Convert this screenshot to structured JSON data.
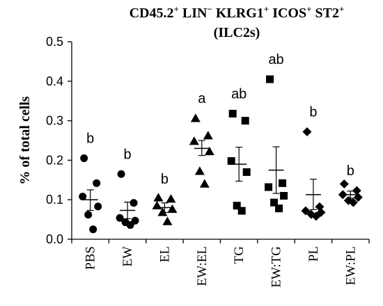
{
  "chart_data": {
    "type": "scatter",
    "title": {
      "line1_parts": [
        {
          "text": "CD45.2",
          "sup": "+"
        },
        {
          "text": " LIN",
          "sup": "−"
        },
        {
          "text": " KLRG1",
          "sup": "+"
        },
        {
          "text": " ICOS",
          "sup": "+"
        },
        {
          "text": " ST2",
          "sup": "+"
        }
      ],
      "line2": "(ILC2s)"
    },
    "ylabel": "% of total cells",
    "xlabel": "",
    "ylim": [
      0,
      0.5
    ],
    "yticks": [
      "0.0",
      "0.1",
      "0.2",
      "0.3",
      "0.4",
      "0.5"
    ],
    "categories": [
      "PBS",
      "EW",
      "EL",
      "EW:EL",
      "TG",
      "EW:TG",
      "PL",
      "EW:PL"
    ],
    "groups": [
      {
        "category": "PBS",
        "marker": "circle",
        "points": [
          0.205,
          0.142,
          0.108,
          0.083,
          0.062,
          0.025
        ],
        "mean": 0.1,
        "sem_low": 0.073,
        "sem_high": 0.125,
        "sig": "b"
      },
      {
        "category": "EW",
        "marker": "circle",
        "points": [
          0.165,
          0.092,
          0.054,
          0.047,
          0.043,
          0.036
        ],
        "mean": 0.073,
        "sem_low": 0.052,
        "sem_high": 0.094,
        "sig": "b"
      },
      {
        "category": "EL",
        "marker": "triangle",
        "points": [
          0.105,
          0.102,
          0.085,
          0.076,
          0.068,
          0.045
        ],
        "mean": 0.08,
        "sem_low": 0.068,
        "sem_high": 0.092,
        "sig": "b"
      },
      {
        "category": "EW:EL",
        "marker": "triangle",
        "points": [
          0.306,
          0.262,
          0.248,
          0.222,
          0.172,
          0.14
        ],
        "mean": 0.23,
        "sem_low": 0.212,
        "sem_high": 0.25,
        "sig": "a"
      },
      {
        "category": "TG",
        "marker": "square",
        "points": [
          0.318,
          0.3,
          0.198,
          0.17,
          0.085,
          0.072
        ],
        "mean": 0.19,
        "sem_low": 0.147,
        "sem_high": 0.233,
        "sig": "ab"
      },
      {
        "category": "EW:TG",
        "marker": "square",
        "points": [
          0.405,
          0.142,
          0.132,
          0.11,
          0.093,
          0.078
        ],
        "mean": 0.175,
        "sem_low": 0.116,
        "sem_high": 0.234,
        "sig": "ab"
      },
      {
        "category": "PL",
        "marker": "diamond",
        "points": [
          0.272,
          0.082,
          0.072,
          0.068,
          0.063,
          0.058
        ],
        "mean": 0.113,
        "sem_low": 0.075,
        "sem_high": 0.152,
        "sig": "b"
      },
      {
        "category": "EW:PL",
        "marker": "diamond",
        "points": [
          0.14,
          0.123,
          0.113,
          0.106,
          0.098,
          0.093
        ],
        "mean": 0.113,
        "sem_low": 0.104,
        "sem_high": 0.122,
        "sig": "b"
      }
    ],
    "grid": false,
    "legend": "none",
    "color": "#000000"
  }
}
